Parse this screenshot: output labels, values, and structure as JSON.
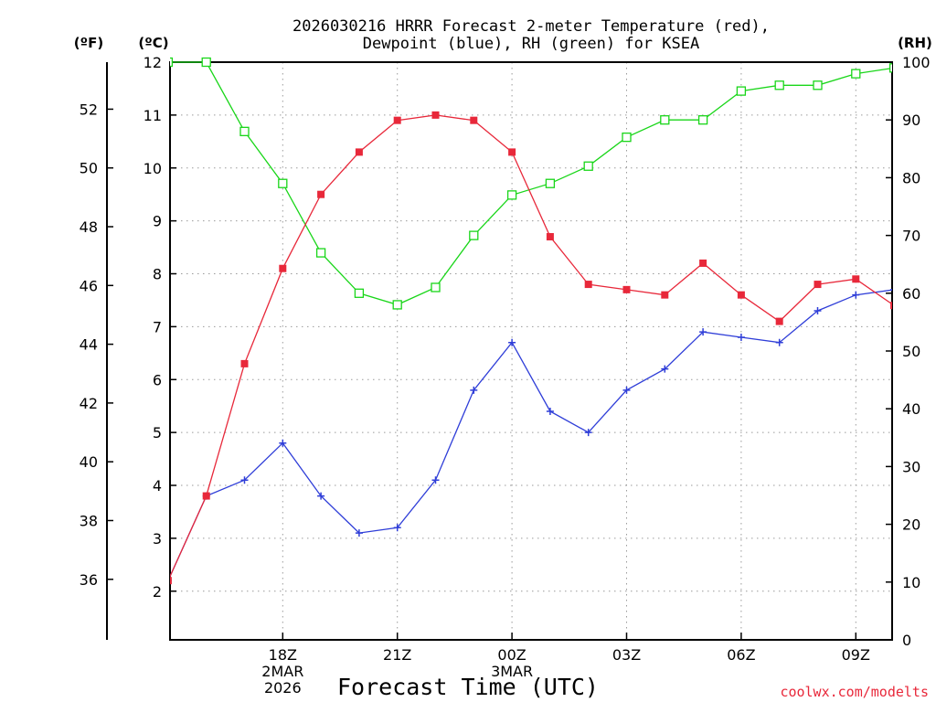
{
  "chart_data": {
    "type": "line",
    "title_lines": [
      "2026030216 HRRR Forecast 2-meter Temperature (red),",
      "Dewpoint (blue), RH (green) for KSEA"
    ],
    "xlabel": "Forecast Time (UTC)",
    "watermark": "coolwx.com/modelts",
    "x_ticks": [
      {
        "hour": 2,
        "lines": [
          "18Z",
          "2MAR",
          "2026"
        ]
      },
      {
        "hour": 5,
        "lines": [
          "21Z"
        ]
      },
      {
        "hour": 8,
        "lines": [
          "00Z",
          "3MAR"
        ]
      },
      {
        "hour": 11,
        "lines": [
          "03Z"
        ]
      },
      {
        "hour": 14,
        "lines": [
          "06Z"
        ]
      },
      {
        "hour": 17,
        "lines": [
          "09Z"
        ]
      }
    ],
    "x_range": [
      -0.95,
      17.95
    ],
    "left_outer_axis": {
      "unit": "(ºF)",
      "range": [
        33.94,
        53.6
      ],
      "ticks": [
        36,
        38,
        40,
        42,
        44,
        46,
        48,
        50,
        52
      ]
    },
    "left_inner_axis": {
      "unit": "(ºC)",
      "range": [
        1.08,
        12.0
      ],
      "ticks": [
        2,
        3,
        4,
        5,
        6,
        7,
        8,
        9,
        10,
        11,
        12
      ]
    },
    "right_axis": {
      "unit": "(RH)",
      "range": [
        0,
        100
      ],
      "ticks": [
        0,
        10,
        20,
        30,
        40,
        50,
        60,
        70,
        80,
        90,
        100
      ]
    },
    "x": [
      -1,
      0,
      1,
      2,
      3,
      4,
      5,
      6,
      7,
      8,
      9,
      10,
      11,
      12,
      13,
      14,
      15,
      16,
      17,
      18
    ],
    "series": [
      {
        "name": "Temperature",
        "color": "#e8283a",
        "marker": "square-filled",
        "axis": "celsius",
        "values": [
          2.2,
          3.8,
          6.3,
          8.1,
          9.5,
          10.3,
          10.9,
          11.0,
          10.9,
          10.3,
          8.7,
          7.8,
          7.7,
          7.6,
          8.2,
          7.6,
          7.1,
          7.8,
          7.9,
          7.4
        ]
      },
      {
        "name": "Dewpoint",
        "color": "#2f3ed8",
        "marker": "plus",
        "axis": "celsius",
        "values": [
          2.2,
          3.8,
          4.1,
          4.8,
          3.8,
          3.1,
          3.2,
          4.1,
          5.8,
          6.7,
          5.4,
          5.0,
          5.8,
          6.2,
          6.9,
          6.8,
          6.7,
          7.3,
          7.6,
          7.7
        ]
      },
      {
        "name": "RH",
        "color": "#19d619",
        "marker": "square-open",
        "axis": "rh",
        "values": [
          100,
          100,
          88,
          79,
          67,
          60,
          58,
          61,
          70,
          77,
          79,
          82,
          87,
          90,
          90,
          95,
          96,
          96,
          98,
          99
        ]
      }
    ]
  }
}
